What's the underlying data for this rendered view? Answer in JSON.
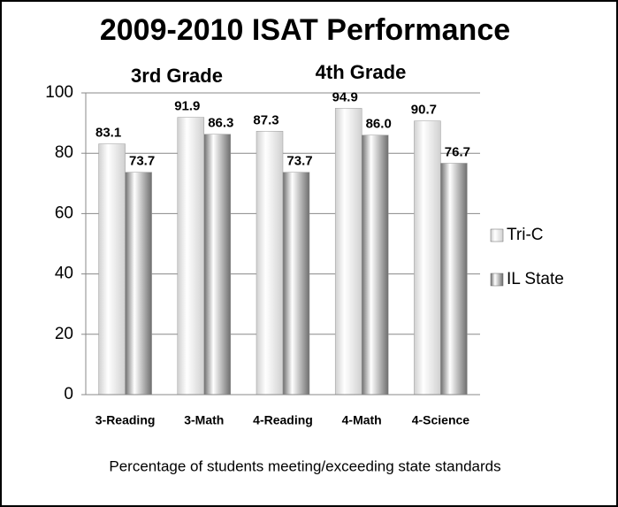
{
  "chart_data": {
    "type": "bar",
    "title": "2009-2010 ISAT Performance",
    "annotations": [
      "3rd Grade",
      "4th Grade"
    ],
    "x_label": "Percentage of students meeting/exceeding state standards",
    "categories": [
      "3-Reading",
      "3-Math",
      "4-Reading",
      "4-Math",
      "4-Science"
    ],
    "series": [
      {
        "name": "Tri-C",
        "color": "#d0d0d0",
        "values": [
          83.1,
          91.9,
          87.3,
          94.9,
          90.7
        ],
        "value_labels": [
          "83.1",
          "91.9",
          "87.3",
          "94.9",
          "90.7"
        ]
      },
      {
        "name": "IL State",
        "color": "#6e6e6e",
        "values": [
          73.7,
          86.3,
          73.7,
          86.0,
          76.7
        ],
        "value_labels": [
          "73.7",
          "86.3",
          "73.7",
          "86.0",
          "76.7"
        ]
      }
    ],
    "ylim": [
      0,
      100
    ],
    "yticks": [
      0,
      20,
      40,
      60,
      80,
      100
    ],
    "grid": true,
    "legend": "right"
  }
}
